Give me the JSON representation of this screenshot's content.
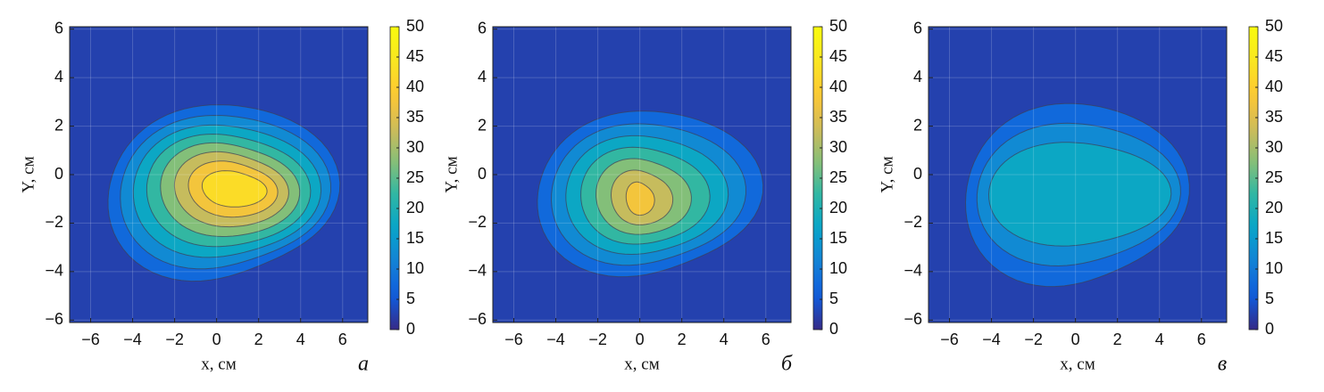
{
  "chart_data": [
    {
      "type": "contour",
      "panel_label": "а",
      "xlabel": "x, см",
      "ylabel": "Y, см",
      "xlim": [
        -7,
        7.2
      ],
      "ylim": [
        -6.1,
        6.1
      ],
      "xticks": [
        {
          "value": -6,
          "label": "−6"
        },
        {
          "value": -4,
          "label": "−4"
        },
        {
          "value": -2,
          "label": "−2"
        },
        0,
        2,
        4,
        6
      ],
      "yticks": [
        {
          "value": -6,
          "label": "−6"
        },
        {
          "value": -4,
          "label": "−4"
        },
        {
          "value": -2,
          "label": "−2"
        },
        0,
        2,
        4,
        6
      ],
      "grid": true,
      "clim": [
        0,
        50
      ],
      "cticks": [
        0,
        5,
        10,
        15,
        20,
        25,
        30,
        35,
        40,
        45,
        50
      ],
      "levels": [
        5,
        10,
        15,
        20,
        25,
        30,
        35,
        40
      ]
    },
    {
      "type": "contour",
      "panel_label": "б",
      "xlabel": "x, см",
      "ylabel": "Y, см",
      "xlim": [
        -7,
        7.2
      ],
      "ylim": [
        -6.1,
        6.1
      ],
      "xticks": [
        {
          "value": -6,
          "label": "−6"
        },
        {
          "value": -4,
          "label": "−4"
        },
        {
          "value": -2,
          "label": "−2"
        },
        0,
        2,
        4,
        6
      ],
      "yticks": [
        {
          "value": -6,
          "label": "−6"
        },
        {
          "value": -4,
          "label": "−4"
        },
        {
          "value": -2,
          "label": "−2"
        },
        0,
        2,
        4,
        6
      ],
      "grid": true,
      "clim": [
        0,
        50
      ],
      "cticks": [
        0,
        5,
        10,
        15,
        20,
        25,
        30,
        35,
        40,
        45,
        50
      ],
      "levels": [
        5,
        10,
        15,
        20,
        25,
        30,
        35
      ]
    },
    {
      "type": "contour",
      "panel_label": "в",
      "xlabel": "x, см",
      "ylabel": "Y, см",
      "xlim": [
        -7,
        7.2
      ],
      "ylim": [
        -6.1,
        6.1
      ],
      "xticks": [
        {
          "value": -6,
          "label": "−6"
        },
        {
          "value": -4,
          "label": "−4"
        },
        {
          "value": -2,
          "label": "−2"
        },
        0,
        2,
        4,
        6
      ],
      "yticks": [
        {
          "value": -6,
          "label": "−6"
        },
        {
          "value": -4,
          "label": "−4"
        },
        {
          "value": -2,
          "label": "−2"
        },
        0,
        2,
        4,
        6
      ],
      "grid": true,
      "clim": [
        0,
        50
      ],
      "cticks": [
        0,
        5,
        10,
        15,
        20,
        25,
        30,
        35,
        40,
        45,
        50
      ],
      "levels": [
        5,
        10,
        15
      ]
    }
  ]
}
